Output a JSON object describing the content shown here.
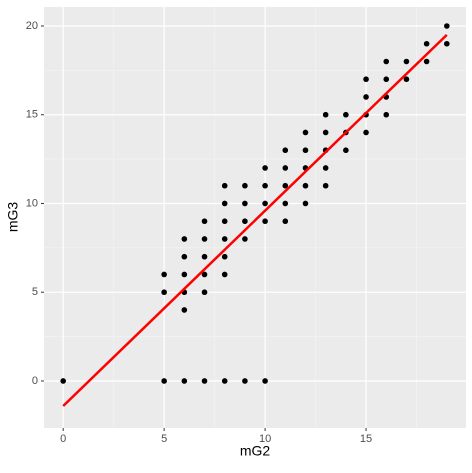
{
  "chart_data": {
    "type": "scatter",
    "xlabel": "mG2",
    "ylabel": "mG3",
    "series": [
      {
        "color": "#000000",
        "x": [
          0,
          5,
          5,
          5,
          6,
          6,
          6,
          6,
          6,
          6,
          7,
          7,
          7,
          7,
          7,
          7,
          8,
          8,
          8,
          8,
          8,
          8,
          8,
          9,
          9,
          9,
          9,
          9,
          10,
          10,
          10,
          10,
          10,
          11,
          11,
          11,
          11,
          11,
          12,
          12,
          12,
          12,
          12,
          13,
          13,
          13,
          13,
          13,
          14,
          14,
          14,
          15,
          15,
          15,
          15,
          16,
          16,
          16,
          16,
          17,
          17,
          18,
          18,
          19,
          19
        ],
        "values": [
          0,
          0,
          5,
          6,
          0,
          4,
          5,
          6,
          7,
          8,
          0,
          5,
          6,
          7,
          8,
          9,
          0,
          6,
          7,
          8,
          9,
          10,
          11,
          0,
          8,
          9,
          10,
          11,
          0,
          9,
          10,
          11,
          12,
          9,
          10,
          11,
          12,
          13,
          10,
          11,
          12,
          13,
          14,
          11,
          12,
          13,
          14,
          15,
          13,
          14,
          15,
          14,
          15,
          16,
          17,
          15,
          16,
          17,
          18,
          17,
          18,
          18,
          19,
          19,
          20
        ]
      }
    ],
    "fit_line": {
      "color": "#ff0000",
      "x": [
        0,
        19
      ],
      "values": [
        -1.41,
        19.5
      ]
    },
    "xlim": [
      -0.95,
      19.95
    ],
    "ylim": [
      -2.65,
      21.07
    ],
    "xticks": [
      0,
      5,
      10,
      15
    ],
    "yticks": [
      0,
      5,
      10,
      15,
      20
    ],
    "x_minor_grid": [
      2.5,
      7.5,
      12.5,
      17.5
    ],
    "y_minor_grid": [
      2.5,
      7.5,
      12.5,
      17.5
    ],
    "grid": true
  }
}
